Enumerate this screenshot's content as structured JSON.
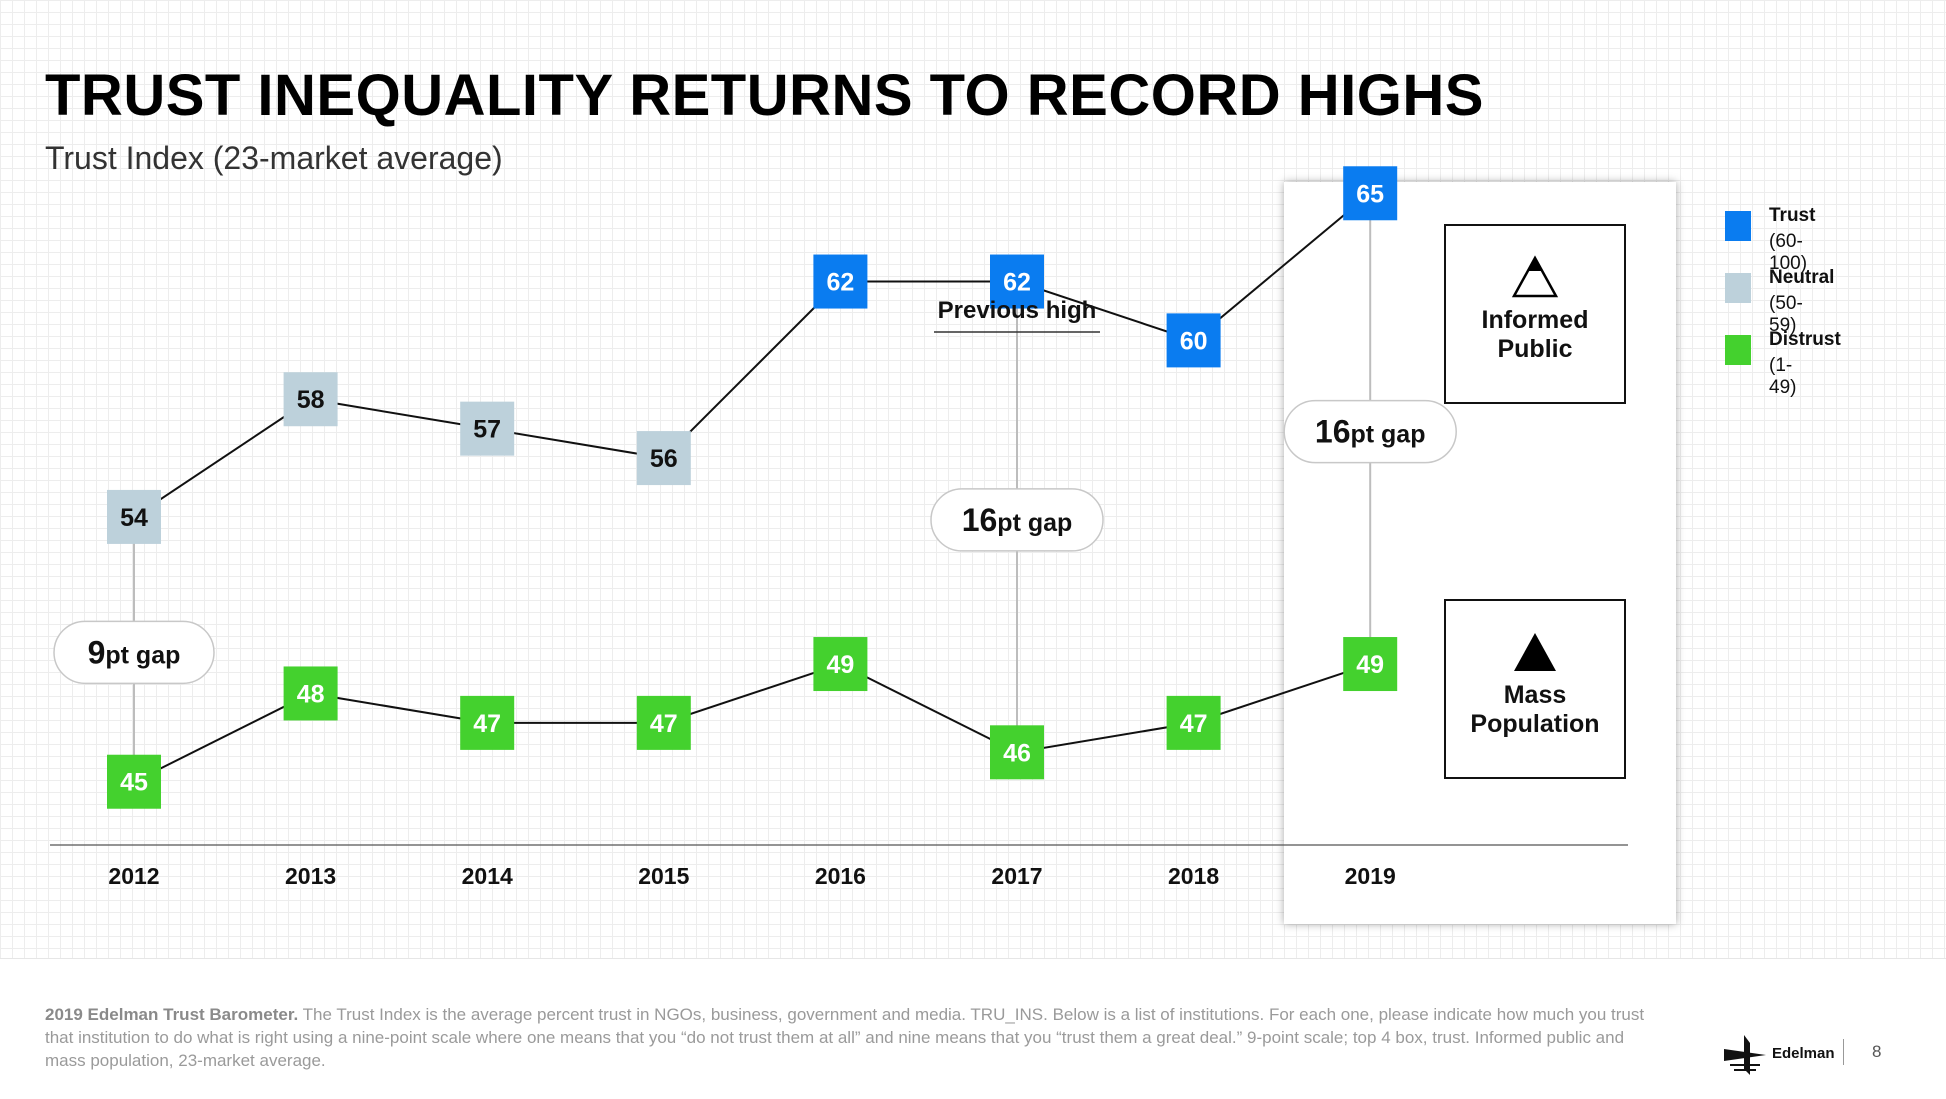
{
  "title": "TRUST INEQUALITY RETURNS TO RECORD HIGHS",
  "subtitle": "Trust Index (23-market average)",
  "chart_data": {
    "type": "line",
    "x": [
      "2012",
      "2013",
      "2014",
      "2015",
      "2016",
      "2017",
      "2018",
      "2019"
    ],
    "series": [
      {
        "name": "Informed Public",
        "values": [
          54,
          58,
          57,
          56,
          62,
          62,
          60,
          65
        ]
      },
      {
        "name": "Mass Population",
        "values": [
          45,
          48,
          47,
          47,
          49,
          46,
          47,
          49
        ]
      }
    ],
    "gaps": [
      {
        "year": "2012",
        "big": "9",
        "small": "pt gap"
      },
      {
        "year": "2017",
        "big": "16",
        "small": "pt gap"
      },
      {
        "year": "2019",
        "big": "16",
        "small": "pt gap"
      }
    ],
    "annotation": {
      "year": "2017",
      "text": "Previous high"
    },
    "highlight_year": "2019",
    "ylim": [
      42,
      68
    ],
    "grid": true,
    "legend_position": "right"
  },
  "legend": [
    {
      "name": "Trust",
      "range": "(60-100)",
      "color": "#0a7cf0"
    },
    {
      "name": "Neutral",
      "range": "(50-59)",
      "color": "#bdd1db"
    },
    {
      "name": "Distrust",
      "range": "(1-49)",
      "color": "#44d12e"
    }
  ],
  "groups": {
    "informed": {
      "label": "Informed Public",
      "icon": "outline-triangle-icon"
    },
    "mass": {
      "label": "Mass Population",
      "icon": "filled-triangle-icon"
    }
  },
  "footer": {
    "bold": "2019 Edelman Trust Barometer.",
    "text": "The Trust Index is the average percent trust in NGOs, business, government and media. TRU_INS. Below is a list of institutions. For each one, please indicate how much you trust that institution to do what is right using a nine-point scale where one means that you “do not trust them at all” and nine means that you “trust them a great deal.” 9-point scale; top 4 box, trust. Informed public and mass population, 23-market average.",
    "brand": "Edelman",
    "page": "8"
  }
}
